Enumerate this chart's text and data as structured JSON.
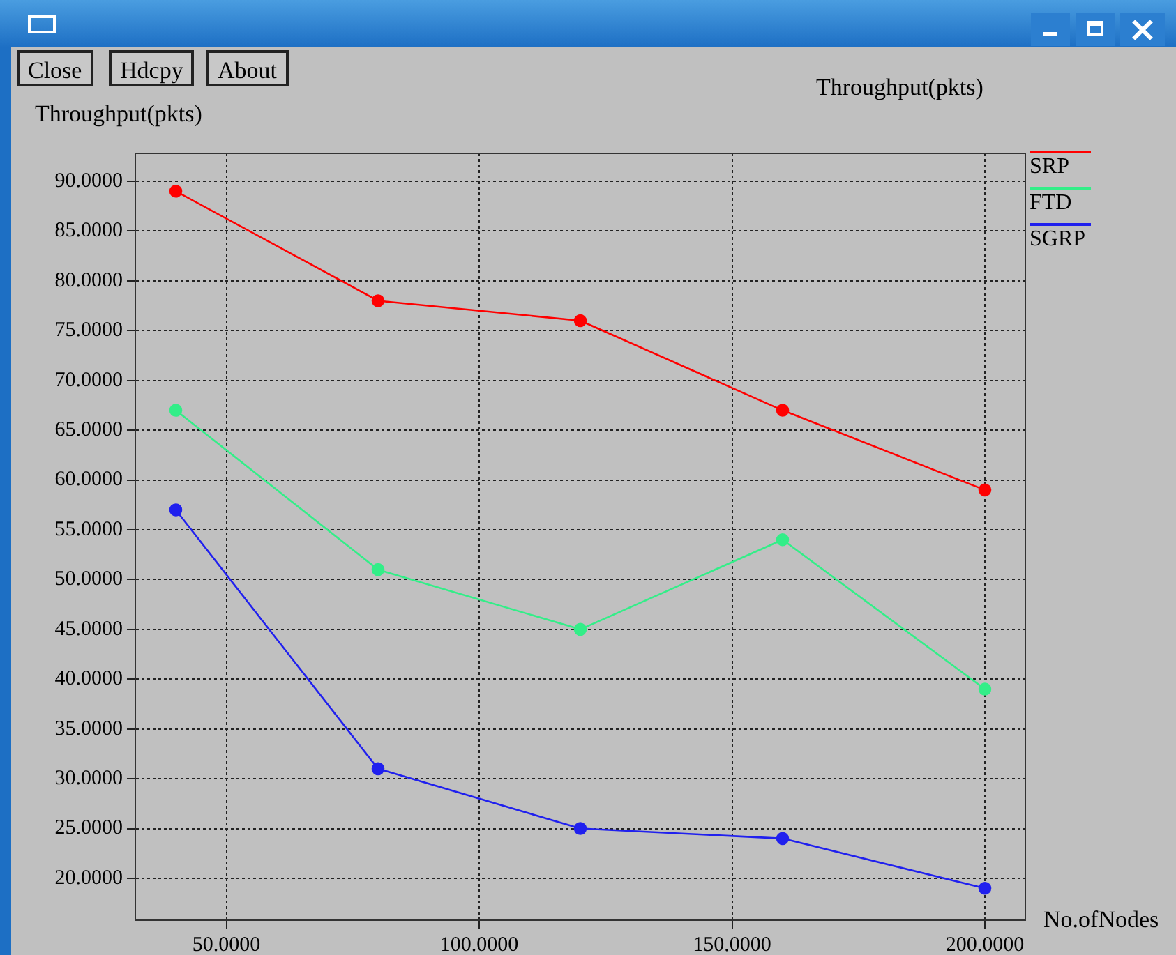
{
  "chart_data": {
    "type": "line",
    "title": "Throughput(pkts)",
    "xlabel": "No.ofNodes",
    "ylabel": "Throughput(pkts)",
    "annotations": [
      "Close",
      "Hdcpy",
      "About"
    ],
    "x": [
      40,
      80,
      120,
      160,
      200
    ],
    "series": [
      {
        "name": "SRP",
        "color": "#ff0000",
        "values": [
          89,
          78,
          76,
          67,
          59
        ]
      },
      {
        "name": "FTD",
        "color": "#33ee88",
        "values": [
          67,
          51,
          45,
          54,
          39
        ]
      },
      {
        "name": "SGRP",
        "color": "#2020ee",
        "values": [
          57,
          31,
          25,
          24,
          19
        ]
      }
    ],
    "xlim": [
      32,
      208
    ],
    "xticks": [
      {
        "value": 50,
        "label": "50.0000"
      },
      {
        "value": 100,
        "label": "100.0000"
      },
      {
        "value": 150,
        "label": "150.0000"
      },
      {
        "value": 200,
        "label": "200.0000"
      }
    ],
    "ylim": [
      15.8,
      92.8
    ],
    "yticks": [
      {
        "value": 20,
        "label": "20.0000"
      },
      {
        "value": 25,
        "label": "25.0000"
      },
      {
        "value": 30,
        "label": "30.0000"
      },
      {
        "value": 35,
        "label": "35.0000"
      },
      {
        "value": 40,
        "label": "40.0000"
      },
      {
        "value": 45,
        "label": "45.0000"
      },
      {
        "value": 50,
        "label": "50.0000"
      },
      {
        "value": 55,
        "label": "55.0000"
      },
      {
        "value": 60,
        "label": "60.0000"
      },
      {
        "value": 65,
        "label": "65.0000"
      },
      {
        "value": 70,
        "label": "70.0000"
      },
      {
        "value": 75,
        "label": "75.0000"
      },
      {
        "value": 80,
        "label": "80.0000"
      },
      {
        "value": 85,
        "label": "85.0000"
      },
      {
        "value": 90,
        "label": "90.0000"
      }
    ],
    "grid": true,
    "legend": "top right",
    "marker": "circle",
    "line_style": "solid"
  }
}
